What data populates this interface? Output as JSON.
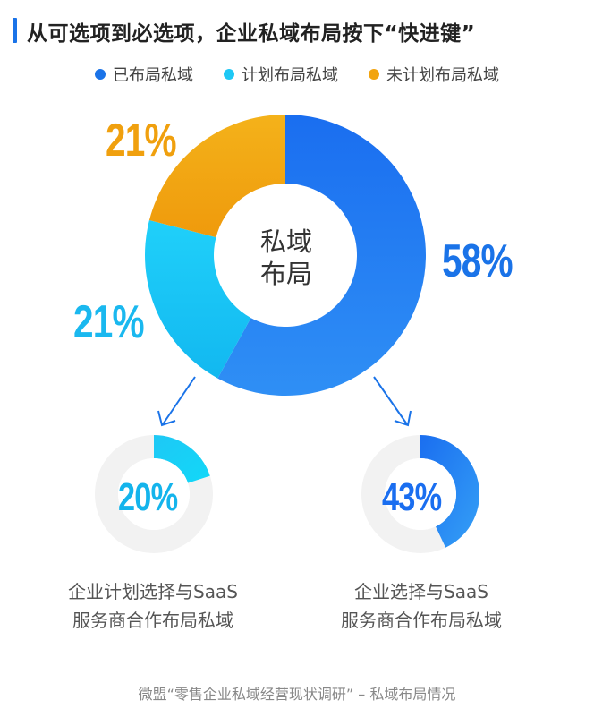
{
  "title": "从可选项到必选项，企业私域布局按下“快进键”",
  "center_label_line1": "私域",
  "center_label_line2": "布局",
  "source": "微盟“零售企业私域经营现状调研” – 私域布局情况",
  "colors": {
    "deployed": "#1a73e8",
    "planned": "#1ec8f5",
    "not_planned": "#f2a40f",
    "track": "#f2f2f2"
  },
  "chart_data": [
    {
      "type": "pie",
      "variant": "donut",
      "legend_position": "top",
      "center_text": "私域布局",
      "slices": [
        {
          "name": "已布局私域",
          "value": 58,
          "label": "58%"
        },
        {
          "name": "计划布局私域",
          "value": 21,
          "label": "21%"
        },
        {
          "name": "未计划布局私域",
          "value": 21,
          "label": "21%"
        }
      ]
    },
    {
      "type": "pie",
      "variant": "donut-progress",
      "value": 20,
      "label": "20%",
      "caption_line1": "企业计划选择与SaaS",
      "caption_line2": "服务商合作布局私域"
    },
    {
      "type": "pie",
      "variant": "donut-progress",
      "value": 43,
      "label": "43%",
      "caption_line1": "企业选择与SaaS",
      "caption_line2": "服务商合作布局私域"
    }
  ]
}
